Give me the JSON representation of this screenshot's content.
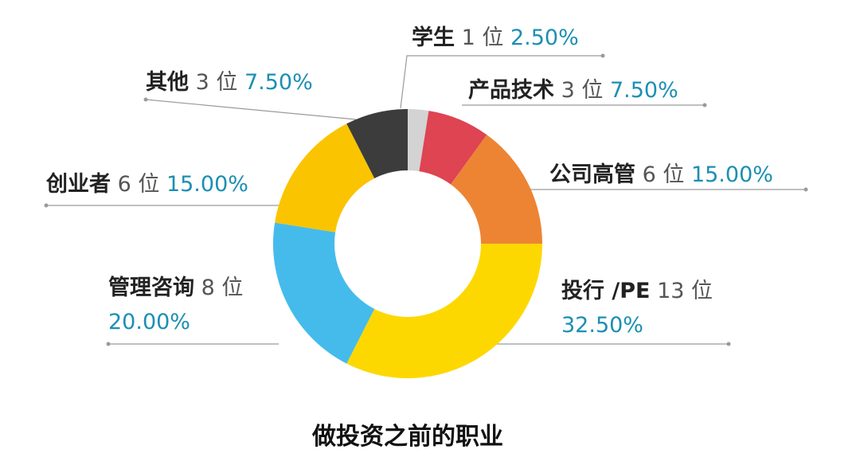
{
  "chart_data": {
    "type": "pie",
    "variant": "donut",
    "title": "做投资之前的职业",
    "slices": [
      {
        "name": "学生",
        "count": 1,
        "count_label": "1 位",
        "percent_label": "2.50%",
        "value": 2.5,
        "color": "#d3d3d3"
      },
      {
        "name": "产品技术",
        "count": 3,
        "count_label": "3 位",
        "percent_label": "7.50%",
        "value": 7.5,
        "color": "#de4452"
      },
      {
        "name": "公司高管",
        "count": 6,
        "count_label": "6 位",
        "percent_label": "15.00%",
        "value": 15.0,
        "color": "#ed8433"
      },
      {
        "name": "投行 /PE",
        "count": 13,
        "count_label": "13 位",
        "percent_label": "32.50%",
        "value": 32.5,
        "color": "#fdd800"
      },
      {
        "name": "管理咨询",
        "count": 8,
        "count_label": "8 位",
        "percent_label": "20.00%",
        "value": 20.0,
        "color": "#45bbec"
      },
      {
        "name": "创业者",
        "count": 6,
        "count_label": "6 位",
        "percent_label": "15.00%",
        "value": 15.0,
        "color": "#fac400"
      },
      {
        "name": "其他",
        "count": 3,
        "count_label": "3 位",
        "percent_label": "7.50%",
        "value": 7.5,
        "color": "#3c3c3c"
      }
    ]
  }
}
